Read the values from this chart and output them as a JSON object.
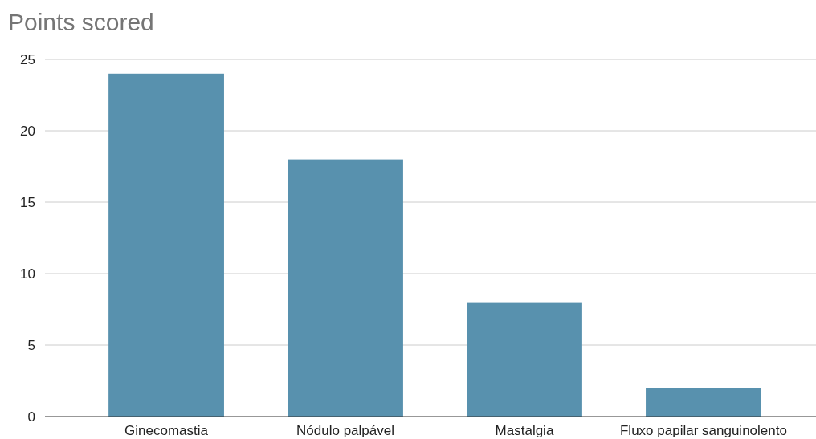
{
  "chart_data": {
    "type": "bar",
    "title": "Points scored",
    "categories": [
      "Ginecomastia",
      "Nódulo palpável",
      "Mastalgia",
      "Fluxo papilar sanguinolento"
    ],
    "values": [
      24,
      18,
      8,
      2
    ],
    "color": "#5891ae",
    "ylim": [
      0,
      25
    ],
    "yticks": [
      0,
      5,
      10,
      15,
      20,
      25
    ],
    "grid": "y"
  }
}
